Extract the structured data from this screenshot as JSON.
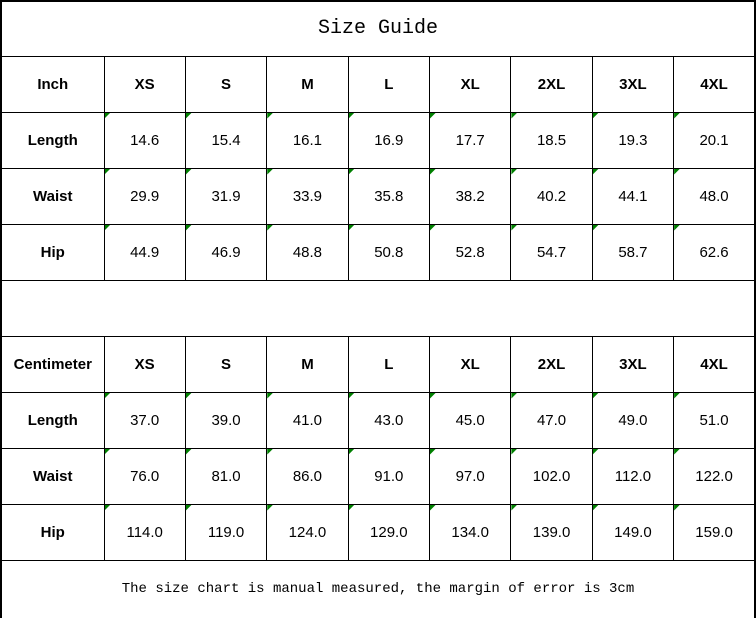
{
  "title": "Size Guide",
  "footer_note": "The size chart is manual measured, the margin of error is 3cm",
  "colors": {
    "triangle_flag": "#008000",
    "border": "#000000",
    "text": "#000000",
    "background": "#ffffff"
  },
  "icons": {
    "cell_flag": "green-corner-triangle"
  },
  "inch_table": {
    "unit_label": "Inch",
    "sizes": [
      "XS",
      "S",
      "M",
      "L",
      "XL",
      "2XL",
      "3XL",
      "4XL"
    ],
    "rows": [
      {
        "label": "Length",
        "values": [
          "14.6",
          "15.4",
          "16.1",
          "16.9",
          "17.7",
          "18.5",
          "19.3",
          "20.1"
        ]
      },
      {
        "label": "Waist",
        "values": [
          "29.9",
          "31.9",
          "33.9",
          "35.8",
          "38.2",
          "40.2",
          "44.1",
          "48.0"
        ]
      },
      {
        "label": "Hip",
        "values": [
          "44.9",
          "46.9",
          "48.8",
          "50.8",
          "52.8",
          "54.7",
          "58.7",
          "62.6"
        ]
      }
    ]
  },
  "cm_table": {
    "unit_label": "Centimeter",
    "sizes": [
      "XS",
      "S",
      "M",
      "L",
      "XL",
      "2XL",
      "3XL",
      "4XL"
    ],
    "rows": [
      {
        "label": "Length",
        "values": [
          "37.0",
          "39.0",
          "41.0",
          "43.0",
          "45.0",
          "47.0",
          "49.0",
          "51.0"
        ]
      },
      {
        "label": "Waist",
        "values": [
          "76.0",
          "81.0",
          "86.0",
          "91.0",
          "97.0",
          "102.0",
          "112.0",
          "122.0"
        ]
      },
      {
        "label": "Hip",
        "values": [
          "114.0",
          "119.0",
          "124.0",
          "129.0",
          "134.0",
          "139.0",
          "149.0",
          "159.0"
        ]
      }
    ]
  }
}
